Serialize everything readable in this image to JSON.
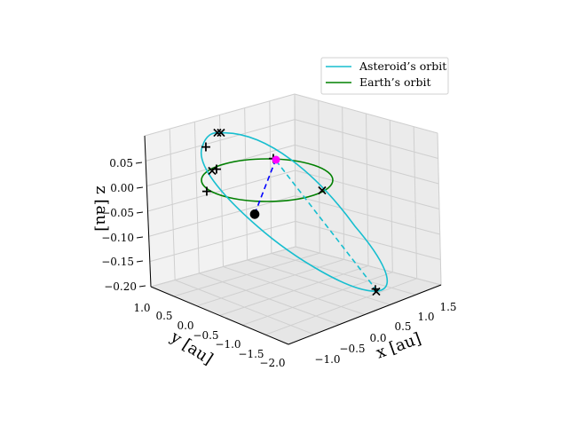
{
  "chart_data": {
    "type": "line",
    "projection": "3d",
    "x_axis": {
      "label": "x [au]",
      "ticks": [
        "−1.0",
        "−0.5",
        "0.0",
        "0.5",
        "1.0",
        "1.5"
      ]
    },
    "y_axis": {
      "label": "y [au]",
      "ticks": [
        "1.0",
        "0.5",
        "0.0",
        "−0.5",
        "−1.0",
        "−1.5",
        "−2.0"
      ]
    },
    "z_axis": {
      "label": "z [au]",
      "ticks": [
        "0.05",
        "0.00",
        "−0.05",
        "−0.10",
        "−0.15",
        "−0.20"
      ]
    },
    "grid": true,
    "legend_position": "top-right",
    "series": [
      {
        "name": "Asteroid’s orbit",
        "color": "#17becf",
        "shape": "ellipse (tilted), far side dashed"
      },
      {
        "name": "Earth’s orbit",
        "color": "#008000",
        "shape": "circle, radius 1 au, z = 0"
      }
    ],
    "markers": {
      "black_x": "×",
      "red_plus": "+",
      "blue_plus": "+",
      "blue_dot": "●",
      "colors": {
        "black": "#000000",
        "red": "#ff0000",
        "blue": "#0000ff",
        "magenta": "#ff00ff"
      }
    },
    "connector": {
      "style": "dashed",
      "color": "#0000ff"
    }
  }
}
